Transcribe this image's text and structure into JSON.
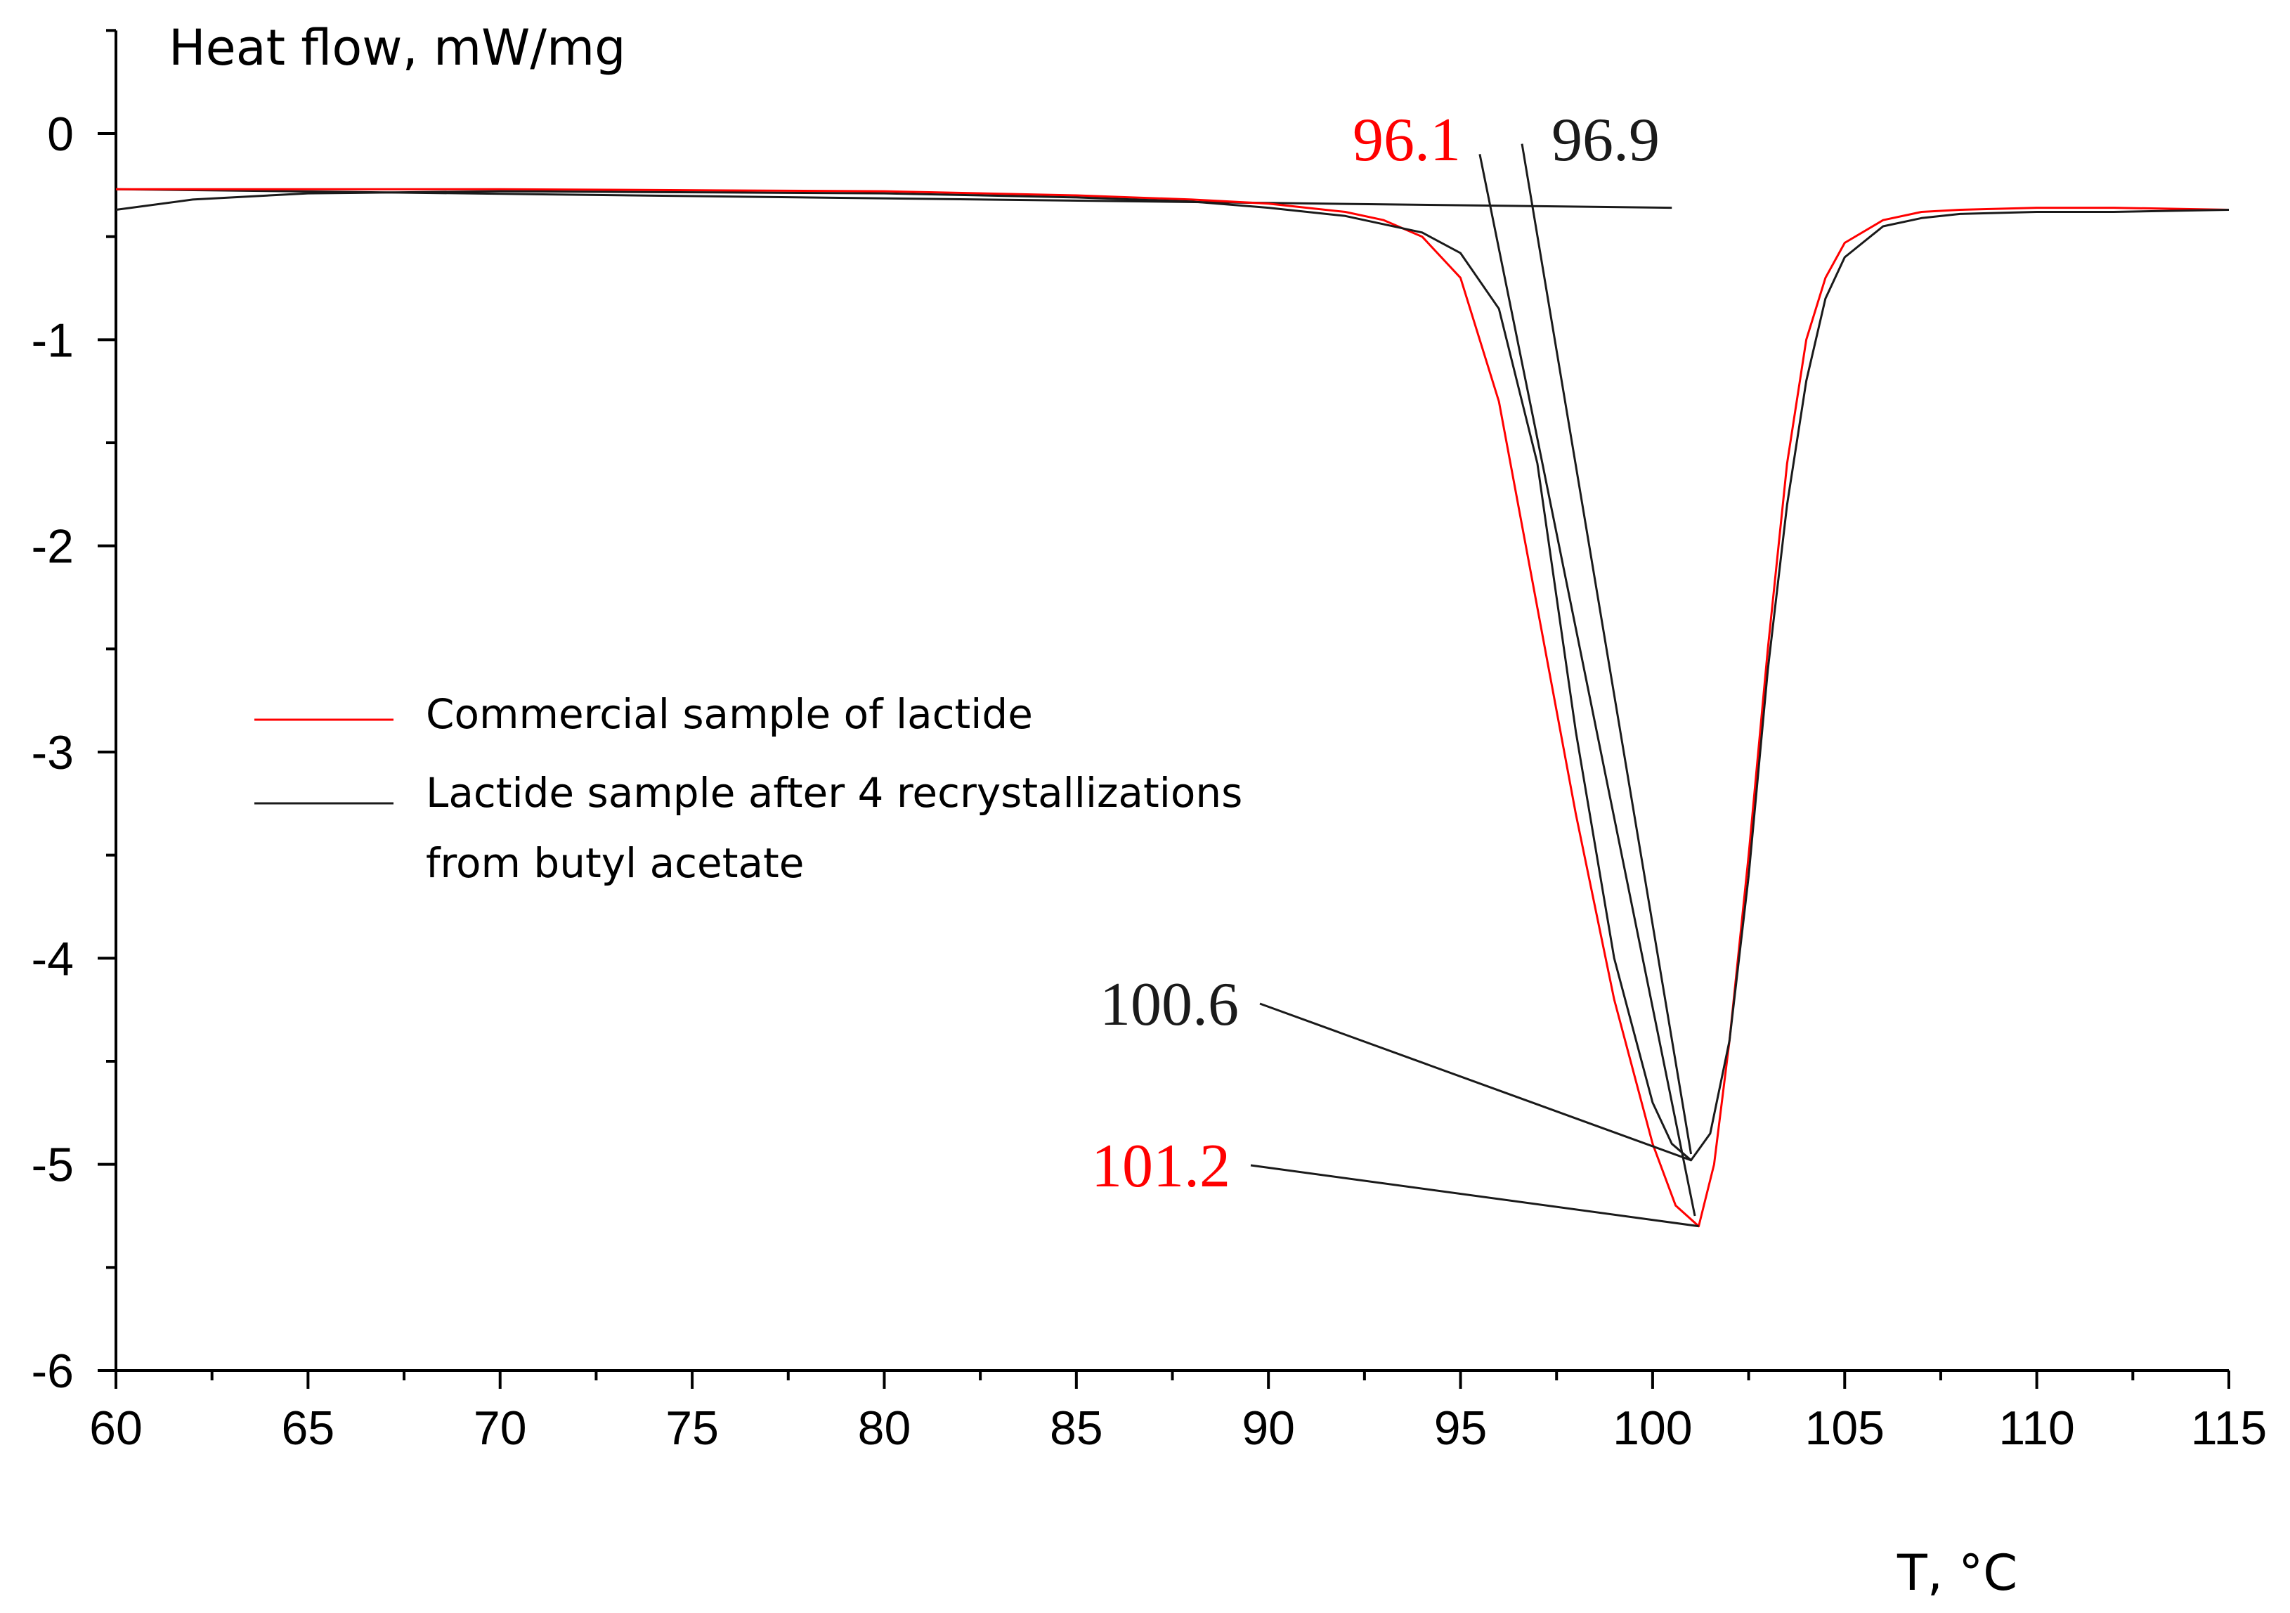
{
  "chart_data": {
    "type": "line",
    "title": "",
    "ylabel": "Heat flow, mW/mg",
    "xlabel": "T, °C",
    "xlim": [
      60,
      115
    ],
    "ylim": [
      -6,
      0.5
    ],
    "grid": false,
    "x_ticks": [
      60,
      65,
      70,
      75,
      80,
      85,
      90,
      95,
      100,
      105,
      110,
      115
    ],
    "x_tick_labels": [
      "60",
      "65",
      "70",
      "75",
      "80",
      "85",
      "90",
      "95",
      "100",
      "105",
      "110",
      "115"
    ],
    "y_ticks": [
      0,
      -1,
      -2,
      -3,
      -4,
      -5,
      -6
    ],
    "y_tick_labels": [
      "0",
      "-1",
      "-2",
      "-3",
      "-4",
      "-5",
      "-6"
    ],
    "legend_position": "center-left",
    "series": [
      {
        "name": "Commercial sample of lactide",
        "color": "#ff0000",
        "x": [
          60,
          70,
          80,
          85,
          88,
          90,
          92,
          93,
          94,
          95,
          96,
          97,
          98,
          99,
          100,
          100.6,
          101.2,
          101.6,
          102,
          102.5,
          103,
          103.5,
          104,
          104.5,
          105,
          106,
          107,
          108,
          110,
          112,
          115
        ],
        "y": [
          -0.27,
          -0.27,
          -0.28,
          -0.3,
          -0.32,
          -0.34,
          -0.38,
          -0.42,
          -0.5,
          -0.7,
          -1.3,
          -2.3,
          -3.3,
          -4.2,
          -4.9,
          -5.2,
          -5.3,
          -5.0,
          -4.4,
          -3.5,
          -2.5,
          -1.6,
          -1.0,
          -0.7,
          -0.53,
          -0.42,
          -0.38,
          -0.37,
          -0.36,
          -0.36,
          -0.37
        ]
      },
      {
        "name": "Lactide sample after 4 recrystallizations from butyl acetate",
        "color": "#1a1a1a",
        "x": [
          60,
          62,
          65,
          70,
          80,
          85,
          88,
          90,
          92,
          94,
          95,
          96,
          97,
          98,
          99,
          100,
          100.5,
          101,
          101.5,
          102,
          102.5,
          103,
          103.5,
          104,
          104.5,
          105,
          106,
          107,
          108,
          110,
          112,
          115
        ],
        "y": [
          -0.37,
          -0.32,
          -0.29,
          -0.28,
          -0.29,
          -0.31,
          -0.33,
          -0.36,
          -0.4,
          -0.48,
          -0.58,
          -0.85,
          -1.6,
          -2.9,
          -4.0,
          -4.7,
          -4.9,
          -4.98,
          -4.85,
          -4.4,
          -3.6,
          -2.6,
          -1.8,
          -1.2,
          -0.8,
          -0.6,
          -0.45,
          -0.41,
          -0.39,
          -0.38,
          -0.38,
          -0.37
        ]
      }
    ],
    "annotations": [
      {
        "text": "96.1",
        "color": "#ff0000",
        "points_to": [
          96.1,
          -0.42
        ]
      },
      {
        "text": "96.9",
        "color": "#1a1a1a",
        "points_to": [
          96.9,
          -0.52
        ]
      },
      {
        "text": "100.6",
        "color": "#1a1a1a",
        "points_to": [
          101.0,
          -4.98
        ]
      },
      {
        "text": "101.2",
        "color": "#ff0000",
        "points_to": [
          101.2,
          -5.3
        ]
      }
    ],
    "baseline": {
      "x": [
        60,
        100.5
      ],
      "y": [
        -0.27,
        -0.36
      ]
    },
    "onset_tangents": [
      {
        "color": "#1a1a1a",
        "x": [
          95.5,
          101.1
        ],
        "y": [
          -0.1,
          -5.25
        ]
      },
      {
        "color": "#1a1a1a",
        "x": [
          96.6,
          101.0
        ],
        "y": [
          -0.05,
          -4.95
        ]
      }
    ]
  }
}
